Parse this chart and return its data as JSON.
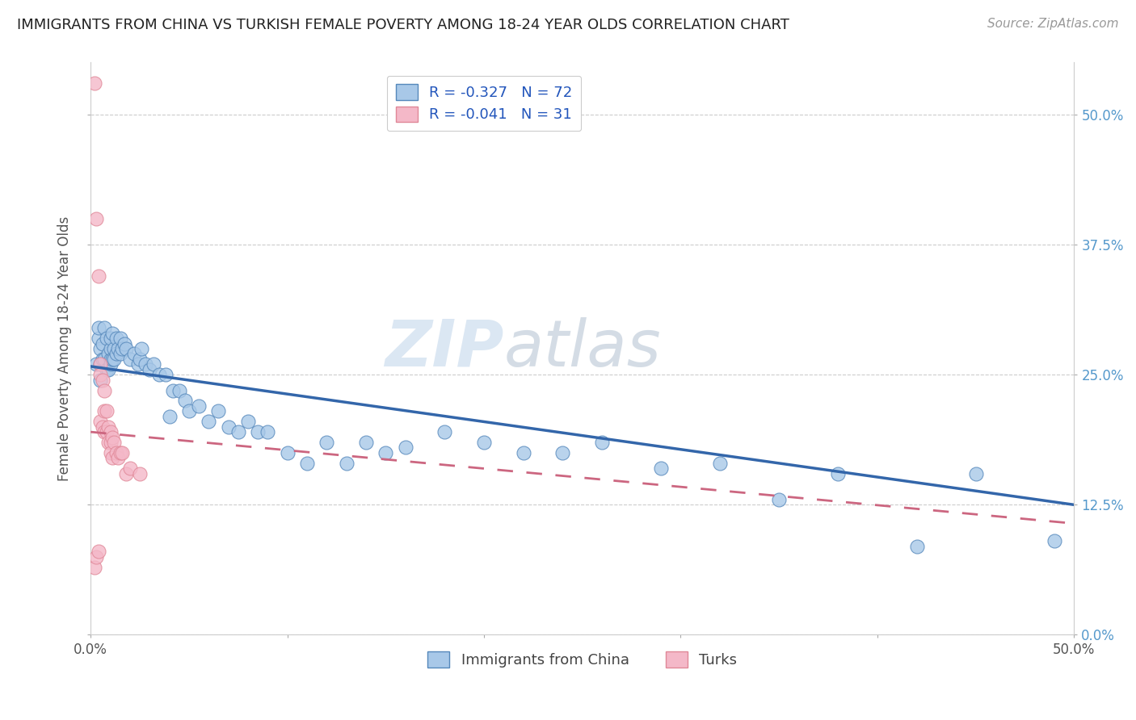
{
  "title": "IMMIGRANTS FROM CHINA VS TURKISH FEMALE POVERTY AMONG 18-24 YEAR OLDS CORRELATION CHART",
  "source": "Source: ZipAtlas.com",
  "ylabel": "Female Poverty Among 18-24 Year Olds",
  "xlim": [
    0.0,
    0.5
  ],
  "ylim": [
    0.0,
    0.55
  ],
  "yticks": [
    0.0,
    0.125,
    0.25,
    0.375,
    0.5
  ],
  "ytick_labels": [
    "0.0%",
    "12.5%",
    "25.0%",
    "37.5%",
    "50.0%"
  ],
  "xticks": [
    0.0,
    0.1,
    0.2,
    0.3,
    0.4,
    0.5
  ],
  "xtick_labels": [
    "0.0%",
    "",
    "",
    "",
    "",
    "50.0%"
  ],
  "blue_R": -0.327,
  "blue_N": 72,
  "pink_R": -0.041,
  "pink_N": 31,
  "legend_label_blue": "Immigrants from China",
  "legend_label_pink": "Turks",
  "blue_color": "#A8C8E8",
  "blue_edge_color": "#5588BB",
  "blue_line_color": "#3366AA",
  "pink_color": "#F4B8C8",
  "pink_edge_color": "#E08898",
  "pink_line_color": "#CC6680",
  "watermark_zip": "ZIP",
  "watermark_atlas": "atlas",
  "blue_x": [
    0.003,
    0.004,
    0.004,
    0.005,
    0.005,
    0.005,
    0.006,
    0.006,
    0.007,
    0.007,
    0.008,
    0.008,
    0.009,
    0.009,
    0.01,
    0.01,
    0.01,
    0.01,
    0.011,
    0.011,
    0.012,
    0.012,
    0.013,
    0.013,
    0.014,
    0.015,
    0.015,
    0.016,
    0.017,
    0.018,
    0.02,
    0.022,
    0.024,
    0.025,
    0.026,
    0.028,
    0.03,
    0.032,
    0.035,
    0.038,
    0.04,
    0.042,
    0.045,
    0.048,
    0.05,
    0.055,
    0.06,
    0.065,
    0.07,
    0.075,
    0.08,
    0.085,
    0.09,
    0.1,
    0.11,
    0.12,
    0.13,
    0.14,
    0.15,
    0.16,
    0.18,
    0.2,
    0.22,
    0.24,
    0.26,
    0.29,
    0.32,
    0.35,
    0.38,
    0.42,
    0.45,
    0.49
  ],
  "blue_y": [
    0.26,
    0.285,
    0.295,
    0.26,
    0.275,
    0.245,
    0.265,
    0.28,
    0.265,
    0.295,
    0.255,
    0.285,
    0.27,
    0.255,
    0.265,
    0.26,
    0.275,
    0.285,
    0.265,
    0.29,
    0.275,
    0.265,
    0.27,
    0.285,
    0.275,
    0.27,
    0.285,
    0.275,
    0.28,
    0.275,
    0.265,
    0.27,
    0.26,
    0.265,
    0.275,
    0.26,
    0.255,
    0.26,
    0.25,
    0.25,
    0.21,
    0.235,
    0.235,
    0.225,
    0.215,
    0.22,
    0.205,
    0.215,
    0.2,
    0.195,
    0.205,
    0.195,
    0.195,
    0.175,
    0.165,
    0.185,
    0.165,
    0.185,
    0.175,
    0.18,
    0.195,
    0.185,
    0.175,
    0.175,
    0.185,
    0.16,
    0.165,
    0.13,
    0.155,
    0.085,
    0.155,
    0.09
  ],
  "pink_x": [
    0.002,
    0.002,
    0.003,
    0.003,
    0.004,
    0.004,
    0.005,
    0.005,
    0.005,
    0.006,
    0.006,
    0.007,
    0.007,
    0.007,
    0.008,
    0.008,
    0.009,
    0.009,
    0.01,
    0.01,
    0.01,
    0.011,
    0.011,
    0.012,
    0.013,
    0.014,
    0.015,
    0.016,
    0.018,
    0.02,
    0.025
  ],
  "pink_y": [
    0.53,
    0.065,
    0.4,
    0.075,
    0.345,
    0.08,
    0.26,
    0.25,
    0.205,
    0.245,
    0.2,
    0.235,
    0.215,
    0.195,
    0.215,
    0.195,
    0.2,
    0.185,
    0.195,
    0.185,
    0.175,
    0.19,
    0.17,
    0.185,
    0.175,
    0.17,
    0.175,
    0.175,
    0.155,
    0.16,
    0.155
  ],
  "blue_trend_x0": 0.0,
  "blue_trend_x1": 0.5,
  "blue_trend_y0": 0.258,
  "blue_trend_y1": 0.125,
  "pink_trend_x0": 0.0,
  "pink_trend_x1": 0.5,
  "pink_trend_y0": 0.195,
  "pink_trend_y1": 0.107
}
